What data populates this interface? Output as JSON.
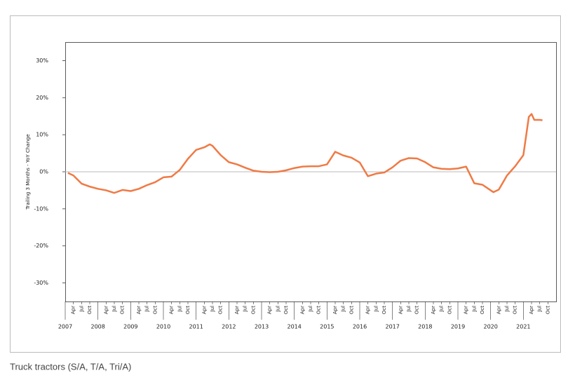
{
  "chart_data": {
    "type": "line",
    "y_label": "Trailing 3 Months - YoY Change",
    "caption": "Truck tractors (S/A, T/A, Tri/A)",
    "x": [
      "2007-02",
      "2007-04",
      "2007-07",
      "2007-10",
      "2008-01",
      "2008-04",
      "2008-07",
      "2008-10",
      "2009-01",
      "2009-04",
      "2009-07",
      "2009-10",
      "2010-01",
      "2010-04",
      "2010-07",
      "2010-10",
      "2011-01",
      "2011-04",
      "2011-06",
      "2011-07",
      "2011-10",
      "2012-01",
      "2012-04",
      "2012-07",
      "2012-10",
      "2013-01",
      "2013-04",
      "2013-07",
      "2013-10",
      "2014-01",
      "2014-04",
      "2014-07",
      "2014-10",
      "2015-01",
      "2015-04",
      "2015-07",
      "2015-10",
      "2016-01",
      "2016-04",
      "2016-07",
      "2016-10",
      "2017-01",
      "2017-04",
      "2017-07",
      "2017-10",
      "2018-01",
      "2018-04",
      "2018-07",
      "2018-10",
      "2019-01",
      "2019-04",
      "2019-07",
      "2019-10",
      "2020-01",
      "2020-02",
      "2020-04",
      "2020-07",
      "2020-10",
      "2021-01",
      "2021-03",
      "2021-04",
      "2021-05",
      "2021-07",
      "2021-08"
    ],
    "series": [
      {
        "color": "#f07a45",
        "values": [
          -0.3,
          -1,
          -3.2,
          -4,
          -4.6,
          -5,
          -5.7,
          -4.9,
          -5.2,
          -4.6,
          -3.6,
          -2.8,
          -1.5,
          -1.3,
          0.5,
          3.5,
          5.9,
          6.6,
          7.4,
          7.0,
          4.5,
          2.6,
          2.0,
          1.1,
          0.3,
          0,
          -0.1,
          0,
          0.4,
          1.0,
          1.4,
          1.5,
          1.5,
          2.0,
          5.4,
          4.4,
          3.8,
          2.5,
          -1.2,
          -0.5,
          -0.2,
          1.2,
          3.0,
          3.7,
          3.6,
          2.6,
          1.2,
          0.8,
          0.7,
          0.9,
          1.4,
          -3.1,
          -3.5,
          -5.0,
          -5.5,
          -4.8,
          -1.0,
          1.5,
          4.5,
          14.8,
          15.6,
          14.0,
          14.0,
          13.9
        ]
      }
    ],
    "ylim": [
      -35,
      35
    ],
    "yticks": [
      {
        "value": -30,
        "label": "-30%"
      },
      {
        "value": -20,
        "label": "-20%"
      },
      {
        "value": -10,
        "label": "-10%"
      },
      {
        "value": 0,
        "label": "0%"
      },
      {
        "value": 10,
        "label": "10%"
      },
      {
        "value": 20,
        "label": "20%"
      },
      {
        "value": 30,
        "label": "30%"
      }
    ],
    "hline": 0,
    "xlim": [
      "2007-01",
      "2022-01"
    ],
    "xticks": [
      {
        "value": "2007-01",
        "label": "2007"
      },
      {
        "value": "2008-01",
        "label": "2008"
      },
      {
        "value": "2009-01",
        "label": "2009"
      },
      {
        "value": "2010-01",
        "label": "2010"
      },
      {
        "value": "2011-01",
        "label": "2011"
      },
      {
        "value": "2012-01",
        "label": "2012"
      },
      {
        "value": "2013-01",
        "label": "2013"
      },
      {
        "value": "2014-01",
        "label": "2014"
      },
      {
        "value": "2015-01",
        "label": "2015"
      },
      {
        "value": "2016-01",
        "label": "2016"
      },
      {
        "value": "2017-01",
        "label": "2017"
      },
      {
        "value": "2018-01",
        "label": "2018"
      },
      {
        "value": "2019-01",
        "label": "2019"
      },
      {
        "value": "2020-01",
        "label": "2020"
      },
      {
        "value": "2021-01",
        "label": "2021"
      }
    ],
    "minor_xticks": [
      {
        "value": "2007-04",
        "label": "Apr"
      },
      {
        "value": "2007-07",
        "label": "Jul"
      },
      {
        "value": "2007-10",
        "label": "Oct"
      },
      {
        "value": "2008-04",
        "label": "Apr"
      },
      {
        "value": "2008-07",
        "label": "Jul"
      },
      {
        "value": "2008-10",
        "label": "Oct"
      },
      {
        "value": "2009-04",
        "label": "Apr"
      },
      {
        "value": "2009-07",
        "label": "Jul"
      },
      {
        "value": "2009-10",
        "label": "Oct"
      },
      {
        "value": "2010-04",
        "label": "Apr"
      },
      {
        "value": "2010-07",
        "label": "Jul"
      },
      {
        "value": "2010-10",
        "label": "Oct"
      },
      {
        "value": "2011-04",
        "label": "Apr"
      },
      {
        "value": "2011-07",
        "label": "Jul"
      },
      {
        "value": "2011-10",
        "label": "Oct"
      },
      {
        "value": "2012-04",
        "label": "Apr"
      },
      {
        "value": "2012-07",
        "label": "Jul"
      },
      {
        "value": "2012-10",
        "label": "Oct"
      },
      {
        "value": "2013-04",
        "label": "Apr"
      },
      {
        "value": "2013-07",
        "label": "Jul"
      },
      {
        "value": "2013-10",
        "label": "Oct"
      },
      {
        "value": "2014-04",
        "label": "Apr"
      },
      {
        "value": "2014-07",
        "label": "Jul"
      },
      {
        "value": "2014-10",
        "label": "Oct"
      },
      {
        "value": "2015-04",
        "label": "Apr"
      },
      {
        "value": "2015-07",
        "label": "Jul"
      },
      {
        "value": "2015-10",
        "label": "Oct"
      },
      {
        "value": "2016-04",
        "label": "Apr"
      },
      {
        "value": "2016-07",
        "label": "Jul"
      },
      {
        "value": "2016-10",
        "label": "Oct"
      },
      {
        "value": "2017-04",
        "label": "Apr"
      },
      {
        "value": "2017-07",
        "label": "Jul"
      },
      {
        "value": "2017-10",
        "label": "Oct"
      },
      {
        "value": "2018-04",
        "label": "Apr"
      },
      {
        "value": "2018-07",
        "label": "Jul"
      },
      {
        "value": "2018-10",
        "label": "Oct"
      },
      {
        "value": "2019-04",
        "label": "Apr"
      },
      {
        "value": "2019-07",
        "label": "Jul"
      },
      {
        "value": "2019-10",
        "label": "Oct"
      },
      {
        "value": "2020-04",
        "label": "Apr"
      },
      {
        "value": "2020-07",
        "label": "Jul"
      },
      {
        "value": "2020-10",
        "label": "Oct"
      },
      {
        "value": "2021-04",
        "label": "Apr"
      },
      {
        "value": "2021-07",
        "label": "Jul"
      },
      {
        "value": "2021-10",
        "label": "Oct"
      }
    ]
  }
}
